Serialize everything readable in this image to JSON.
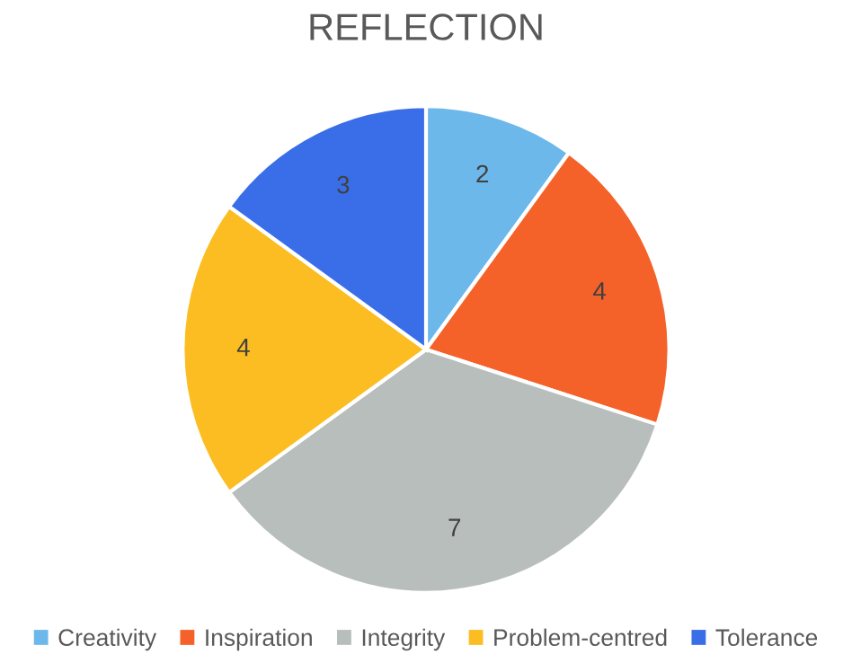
{
  "chart_data": {
    "type": "pie",
    "title": "REFLECTION",
    "categories": [
      "Creativity",
      "Inspiration",
      "Integrity",
      "Problem-centred",
      "Tolerance"
    ],
    "values": [
      2,
      4,
      7,
      4,
      3
    ],
    "colors": [
      "#6cb8ea",
      "#f4622a",
      "#b8bebc",
      "#fbbd22",
      "#3a6ee8"
    ],
    "data_labels": true,
    "legend": "bottom"
  }
}
